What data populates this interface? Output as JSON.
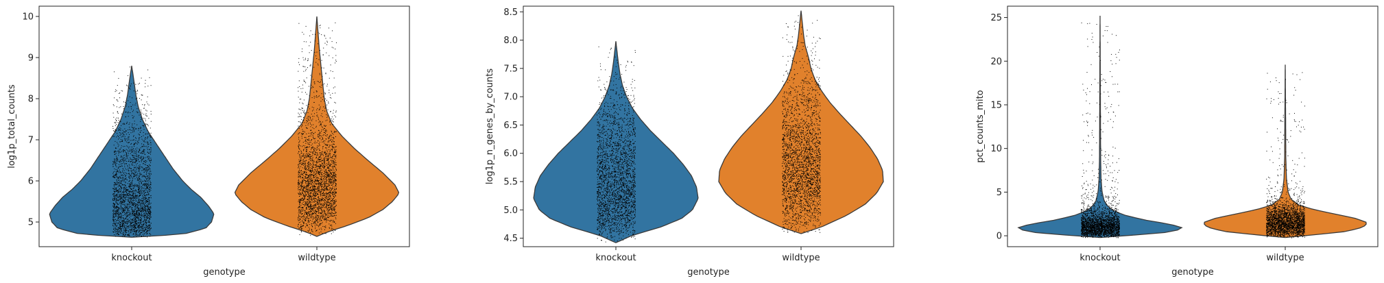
{
  "colors": {
    "knockout": "#3274a1",
    "wildtype": "#e1812c",
    "edge": "#3a3a3a",
    "points": "#000000"
  },
  "chart_data": [
    {
      "type": "violin",
      "title": "",
      "xlabel": "genotype",
      "ylabel": "log1p_total_counts",
      "categories": [
        "knockout",
        "wildtype"
      ],
      "ylim": [
        4.4,
        10.25
      ],
      "yticks": [
        "5",
        "6",
        "7",
        "8",
        "9",
        "10"
      ],
      "ytick_values": [
        5,
        6,
        7,
        8,
        9,
        10
      ],
      "series": [
        {
          "category": "knockout",
          "min": 4.63,
          "max": 8.8,
          "density": [
            [
              4.63,
              0.0
            ],
            [
              4.7,
              0.62
            ],
            [
              4.85,
              0.9
            ],
            [
              5.0,
              0.97
            ],
            [
              5.2,
              1.0
            ],
            [
              5.4,
              0.93
            ],
            [
              5.6,
              0.84
            ],
            [
              5.8,
              0.72
            ],
            [
              6.0,
              0.62
            ],
            [
              6.3,
              0.5
            ],
            [
              6.6,
              0.4
            ],
            [
              6.9,
              0.3
            ],
            [
              7.2,
              0.2
            ],
            [
              7.5,
              0.13
            ],
            [
              7.8,
              0.08
            ],
            [
              8.1,
              0.05
            ],
            [
              8.4,
              0.03
            ],
            [
              8.8,
              0.0
            ]
          ]
        },
        {
          "category": "wildtype",
          "min": 4.65,
          "max": 10.0,
          "density": [
            [
              4.65,
              0.0
            ],
            [
              4.75,
              0.12
            ],
            [
              4.9,
              0.35
            ],
            [
              5.1,
              0.62
            ],
            [
              5.3,
              0.8
            ],
            [
              5.5,
              0.92
            ],
            [
              5.7,
              1.0
            ],
            [
              5.9,
              0.95
            ],
            [
              6.2,
              0.8
            ],
            [
              6.5,
              0.62
            ],
            [
              6.8,
              0.45
            ],
            [
              7.1,
              0.3
            ],
            [
              7.4,
              0.18
            ],
            [
              7.7,
              0.12
            ],
            [
              8.0,
              0.09
            ],
            [
              8.4,
              0.07
            ],
            [
              8.8,
              0.05
            ],
            [
              9.2,
              0.03
            ],
            [
              9.6,
              0.015
            ],
            [
              10.0,
              0.0
            ]
          ]
        }
      ]
    },
    {
      "type": "violin",
      "title": "",
      "xlabel": "genotype",
      "ylabel": "log1p_n_genes_by_counts",
      "categories": [
        "knockout",
        "wildtype"
      ],
      "ylim": [
        4.35,
        8.6
      ],
      "yticks": [
        "4.5",
        "5.0",
        "5.5",
        "6.0",
        "6.5",
        "7.0",
        "7.5",
        "8.0",
        "8.5"
      ],
      "ytick_values": [
        4.5,
        5.0,
        5.5,
        6.0,
        6.5,
        7.0,
        7.5,
        8.0,
        8.5
      ],
      "series": [
        {
          "category": "knockout",
          "min": 4.42,
          "max": 7.98,
          "density": [
            [
              4.42,
              0.0
            ],
            [
              4.55,
              0.2
            ],
            [
              4.7,
              0.55
            ],
            [
              4.85,
              0.8
            ],
            [
              5.0,
              0.93
            ],
            [
              5.2,
              1.0
            ],
            [
              5.4,
              0.98
            ],
            [
              5.6,
              0.92
            ],
            [
              5.8,
              0.82
            ],
            [
              6.0,
              0.7
            ],
            [
              6.2,
              0.56
            ],
            [
              6.4,
              0.42
            ],
            [
              6.6,
              0.3
            ],
            [
              6.8,
              0.2
            ],
            [
              7.0,
              0.13
            ],
            [
              7.2,
              0.08
            ],
            [
              7.4,
              0.05
            ],
            [
              7.6,
              0.03
            ],
            [
              7.98,
              0.0
            ]
          ]
        },
        {
          "category": "wildtype",
          "min": 4.58,
          "max": 8.52,
          "density": [
            [
              4.58,
              0.0
            ],
            [
              4.7,
              0.25
            ],
            [
              4.9,
              0.55
            ],
            [
              5.1,
              0.78
            ],
            [
              5.3,
              0.92
            ],
            [
              5.5,
              1.0
            ],
            [
              5.7,
              0.99
            ],
            [
              5.9,
              0.93
            ],
            [
              6.1,
              0.84
            ],
            [
              6.3,
              0.73
            ],
            [
              6.5,
              0.6
            ],
            [
              6.7,
              0.47
            ],
            [
              6.9,
              0.35
            ],
            [
              7.1,
              0.25
            ],
            [
              7.3,
              0.17
            ],
            [
              7.5,
              0.12
            ],
            [
              7.7,
              0.09
            ],
            [
              7.9,
              0.05
            ],
            [
              8.1,
              0.03
            ],
            [
              8.52,
              0.0
            ]
          ]
        }
      ]
    },
    {
      "type": "violin",
      "title": "",
      "xlabel": "genotype",
      "ylabel": "pct_counts_mito",
      "categories": [
        "knockout",
        "wildtype"
      ],
      "ylim": [
        -1.25,
        26.3
      ],
      "yticks": [
        "0",
        "5",
        "10",
        "15",
        "20",
        "25"
      ],
      "ytick_values": [
        0,
        5,
        10,
        15,
        20,
        25
      ],
      "series": [
        {
          "category": "knockout",
          "min": -0.2,
          "max": 25.2,
          "density": [
            [
              -0.2,
              0.0
            ],
            [
              0.0,
              0.3
            ],
            [
              0.3,
              0.75
            ],
            [
              0.7,
              0.97
            ],
            [
              1.0,
              1.0
            ],
            [
              1.4,
              0.8
            ],
            [
              1.8,
              0.55
            ],
            [
              2.3,
              0.32
            ],
            [
              2.8,
              0.18
            ],
            [
              3.3,
              0.1
            ],
            [
              4.0,
              0.05
            ],
            [
              5.0,
              0.025
            ],
            [
              6.5,
              0.012
            ],
            [
              9.0,
              0.007
            ],
            [
              13.0,
              0.005
            ],
            [
              25.2,
              0.0
            ]
          ]
        },
        {
          "category": "wildtype",
          "min": -0.2,
          "max": 19.6,
          "density": [
            [
              -0.2,
              0.0
            ],
            [
              0.1,
              0.35
            ],
            [
              0.5,
              0.75
            ],
            [
              1.0,
              0.95
            ],
            [
              1.5,
              1.0
            ],
            [
              2.0,
              0.85
            ],
            [
              2.5,
              0.6
            ],
            [
              3.0,
              0.35
            ],
            [
              3.5,
              0.17
            ],
            [
              4.2,
              0.07
            ],
            [
              5.0,
              0.035
            ],
            [
              6.5,
              0.015
            ],
            [
              9.0,
              0.007
            ],
            [
              13.0,
              0.005
            ],
            [
              19.6,
              0.0
            ]
          ]
        }
      ]
    }
  ]
}
